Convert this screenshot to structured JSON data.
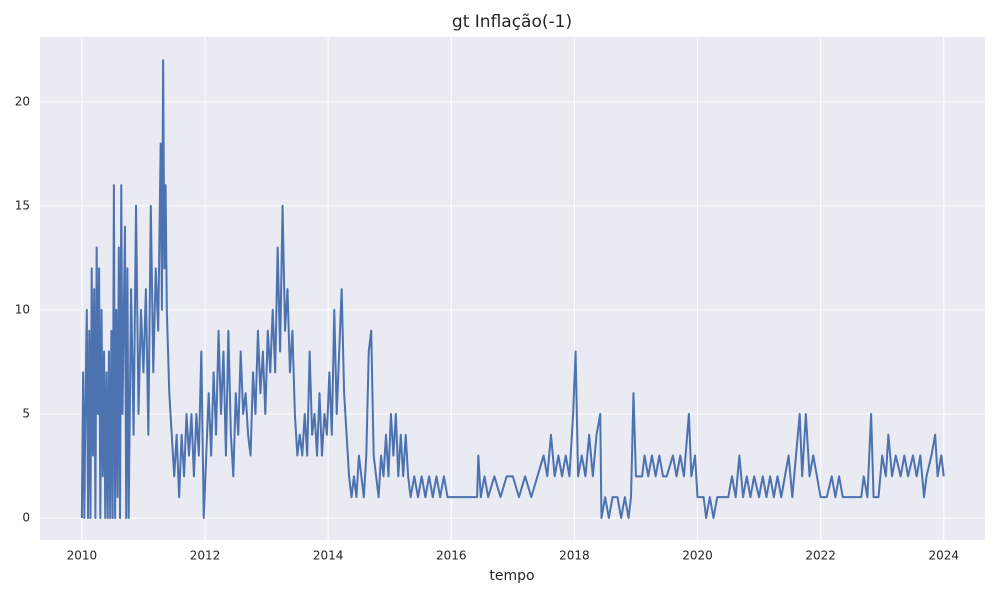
{
  "chart_data": {
    "type": "line",
    "title": "gt Inflação(-1)",
    "xlabel": "tempo",
    "x": [
      2010.0,
      2010.02,
      2010.04,
      2010.06,
      2010.08,
      2010.1,
      2010.12,
      2010.14,
      2010.16,
      2010.18,
      2010.2,
      2010.22,
      2010.24,
      2010.26,
      2010.28,
      2010.3,
      2010.32,
      2010.34,
      2010.36,
      2010.38,
      2010.4,
      2010.42,
      2010.44,
      2010.46,
      2010.48,
      2010.5,
      2010.52,
      2010.54,
      2010.56,
      2010.58,
      2010.6,
      2010.62,
      2010.64,
      2010.66,
      2010.7,
      2010.72,
      2010.74,
      2010.76,
      2010.8,
      2010.84,
      2010.88,
      2010.92,
      2010.96,
      2011.0,
      2011.04,
      2011.08,
      2011.12,
      2011.16,
      2011.2,
      2011.24,
      2011.28,
      2011.3,
      2011.32,
      2011.34,
      2011.36,
      2011.38,
      2011.42,
      2011.46,
      2011.5,
      2011.54,
      2011.58,
      2011.62,
      2011.66,
      2011.7,
      2011.74,
      2011.78,
      2011.82,
      2011.86,
      2011.9,
      2011.94,
      2011.98,
      2012.02,
      2012.06,
      2012.1,
      2012.14,
      2012.18,
      2012.22,
      2012.26,
      2012.3,
      2012.34,
      2012.38,
      2012.42,
      2012.46,
      2012.5,
      2012.54,
      2012.58,
      2012.62,
      2012.66,
      2012.7,
      2012.74,
      2012.78,
      2012.82,
      2012.86,
      2012.9,
      2012.94,
      2012.98,
      2013.02,
      2013.06,
      2013.1,
      2013.14,
      2013.18,
      2013.22,
      2013.26,
      2013.3,
      2013.34,
      2013.38,
      2013.42,
      2013.46,
      2013.5,
      2013.54,
      2013.58,
      2013.62,
      2013.66,
      2013.7,
      2013.74,
      2013.78,
      2013.82,
      2013.86,
      2013.9,
      2013.94,
      2013.98,
      2014.02,
      2014.06,
      2014.1,
      2014.14,
      2014.18,
      2014.22,
      2014.26,
      2014.3,
      2014.34,
      2014.38,
      2014.42,
      2014.46,
      2014.5,
      2014.54,
      2014.58,
      2014.62,
      2014.66,
      2014.7,
      2014.74,
      2014.78,
      2014.82,
      2014.86,
      2014.9,
      2014.94,
      2014.98,
      2015.02,
      2015.06,
      2015.1,
      2015.14,
      2015.18,
      2015.22,
      2015.26,
      2015.3,
      2015.34,
      2015.4,
      2015.46,
      2015.52,
      2015.58,
      2015.64,
      2015.7,
      2015.76,
      2015.82,
      2015.88,
      2015.94,
      2016.0,
      2016.3,
      2016.42,
      2016.44,
      2016.48,
      2016.54,
      2016.6,
      2016.7,
      2016.8,
      2016.9,
      2017.0,
      2017.1,
      2017.2,
      2017.3,
      2017.4,
      2017.5,
      2017.56,
      2017.62,
      2017.68,
      2017.74,
      2017.8,
      2017.86,
      2017.92,
      2017.98,
      2018.02,
      2018.06,
      2018.12,
      2018.18,
      2018.24,
      2018.3,
      2018.36,
      2018.42,
      2018.44,
      2018.5,
      2018.56,
      2018.62,
      2018.7,
      2018.76,
      2018.82,
      2018.88,
      2018.92,
      2018.96,
      2019.0,
      2019.1,
      2019.14,
      2019.2,
      2019.26,
      2019.32,
      2019.38,
      2019.44,
      2019.5,
      2019.6,
      2019.66,
      2019.72,
      2019.78,
      2019.86,
      2019.9,
      2019.96,
      2020.0,
      2020.1,
      2020.14,
      2020.2,
      2020.26,
      2020.32,
      2020.4,
      2020.5,
      2020.56,
      2020.62,
      2020.68,
      2020.74,
      2020.8,
      2020.86,
      2020.92,
      2021.0,
      2021.06,
      2021.12,
      2021.18,
      2021.24,
      2021.3,
      2021.36,
      2021.42,
      2021.48,
      2021.54,
      2021.6,
      2021.66,
      2021.7,
      2021.76,
      2021.82,
      2021.88,
      2021.94,
      2022.0,
      2022.1,
      2022.18,
      2022.24,
      2022.3,
      2022.36,
      2022.5,
      2022.66,
      2022.7,
      2022.76,
      2022.82,
      2022.86,
      2022.94,
      2023.0,
      2023.06,
      2023.1,
      2023.16,
      2023.22,
      2023.3,
      2023.36,
      2023.42,
      2023.5,
      2023.56,
      2023.62,
      2023.68,
      2023.72,
      2023.8,
      2023.86,
      2023.9,
      2023.96,
      2024.0
    ],
    "series": [
      {
        "color": "#4c72b0",
        "values": [
          0,
          7,
          0,
          6,
          10,
          0,
          9,
          0,
          12,
          3,
          11,
          0,
          13,
          5,
          12,
          0,
          10,
          2,
          8,
          0,
          7,
          0,
          8,
          0,
          9,
          0,
          16,
          0,
          10,
          1,
          13,
          0,
          16,
          5,
          14,
          0,
          12,
          0,
          11,
          4,
          15,
          5,
          10,
          7,
          11,
          4,
          15,
          7,
          12,
          9,
          18,
          10,
          22,
          12,
          16,
          10,
          6,
          4,
          2,
          4,
          1,
          4,
          2,
          5,
          3,
          5,
          2,
          5,
          3,
          8,
          0,
          3,
          6,
          3,
          7,
          4,
          9,
          5,
          8,
          3,
          9,
          4,
          2,
          6,
          4,
          8,
          5,
          6,
          4,
          3,
          7,
          5,
          9,
          6,
          8,
          5,
          9,
          7,
          10,
          7,
          13,
          8,
          15,
          9,
          11,
          7,
          9,
          5,
          3,
          4,
          3,
          5,
          3,
          8,
          4,
          5,
          3,
          6,
          3,
          5,
          4,
          7,
          4,
          10,
          5,
          8,
          11,
          6,
          4,
          2,
          1,
          2,
          1,
          3,
          2,
          1,
          3,
          8,
          9,
          3,
          2,
          1,
          3,
          2,
          4,
          2,
          5,
          3,
          5,
          2,
          4,
          2,
          4,
          2,
          1,
          2,
          1,
          2,
          1,
          2,
          1,
          2,
          1,
          2,
          1,
          1,
          1,
          1,
          3,
          1,
          2,
          1,
          2,
          1,
          2,
          2,
          1,
          2,
          1,
          2,
          3,
          2,
          4,
          2,
          3,
          2,
          3,
          2,
          5,
          8,
          2,
          3,
          2,
          4,
          2,
          4,
          5,
          0,
          1,
          0,
          1,
          1,
          0,
          1,
          0,
          1,
          6,
          2,
          2,
          3,
          2,
          3,
          2,
          3,
          2,
          2,
          3,
          2,
          3,
          2,
          5,
          2,
          3,
          1,
          1,
          0,
          1,
          0,
          1,
          1,
          1,
          2,
          1,
          3,
          1,
          2,
          1,
          2,
          1,
          2,
          1,
          2,
          1,
          2,
          1,
          2,
          3,
          1,
          3,
          5,
          2,
          5,
          2,
          3,
          2,
          1,
          1,
          2,
          1,
          2,
          1,
          1,
          1,
          2,
          1,
          5,
          1,
          1,
          3,
          2,
          4,
          2,
          3,
          2,
          3,
          2,
          3,
          2,
          3,
          1,
          2,
          3,
          4,
          2,
          3,
          2
        ]
      }
    ],
    "xlim": [
      2009.32,
      2024.67
    ],
    "ylim": [
      -1.06,
      23.12
    ],
    "xticks": [
      2010,
      2012,
      2014,
      2016,
      2018,
      2020,
      2022,
      2024
    ],
    "yticks": [
      0,
      5,
      10,
      15,
      20
    ],
    "grid": true
  }
}
